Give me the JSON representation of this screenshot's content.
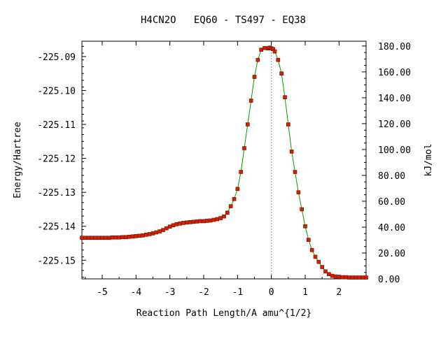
{
  "chart_data": {
    "type": "line",
    "title": "H4CN2O   EQ60 - TS497 - EQ38",
    "xlabel": "Reaction Path Length/A amu^{1/2}",
    "ylabel": "Energy/Hartree",
    "y2label": "kJ/mol",
    "xlim": [
      -5.6,
      2.8
    ],
    "ylim": [
      -225.1555,
      -225.0855
    ],
    "y2lim": [
      0.0,
      183.7
    ],
    "x_ticks": [
      "-5",
      "-4",
      "-3",
      "-2",
      "-1",
      "0",
      "1",
      "2"
    ],
    "y_ticks": [
      "-225.15",
      "-225.14",
      "-225.13",
      "-225.12",
      "-225.11",
      "-225.10",
      "-225.09"
    ],
    "y2_ticks": [
      "0.00",
      "20.00",
      "40.00",
      "60.00",
      "80.00",
      "100.00",
      "120.00",
      "140.00",
      "160.00",
      "180.00"
    ],
    "ts_marker_x": 0.0,
    "grid": false,
    "colors": {
      "line": "#00a000",
      "points": "#d42000",
      "point_edge": "#6a1000",
      "ts_line": "#a0a0a0"
    },
    "series": [
      {
        "x": [
          -5.6,
          -5.5,
          -5.4,
          -5.3,
          -5.2,
          -5.1,
          -5.0,
          -4.9,
          -4.8,
          -4.7,
          -4.6,
          -4.5,
          -4.4,
          -4.3,
          -4.2,
          -4.1,
          -4.0,
          -3.9,
          -3.8,
          -3.7,
          -3.6,
          -3.5,
          -3.4,
          -3.3,
          -3.2,
          -3.1,
          -3.0,
          -2.9,
          -2.8,
          -2.7,
          -2.6,
          -2.5,
          -2.4,
          -2.3,
          -2.2,
          -2.1,
          -2.0,
          -1.9,
          -1.8,
          -1.7,
          -1.6,
          -1.5,
          -1.4,
          -1.3,
          -1.2,
          -1.1,
          -1.0,
          -0.9,
          -0.8,
          -0.7,
          -0.6,
          -0.5,
          -0.4,
          -0.3,
          -0.2,
          -0.1,
          -0.05,
          0.0,
          0.05,
          0.1,
          0.2,
          0.3,
          0.4,
          0.5,
          0.6,
          0.7,
          0.8,
          0.9,
          1.0,
          1.1,
          1.2,
          1.3,
          1.4,
          1.5,
          1.6,
          1.7,
          1.8,
          1.9,
          2.0,
          2.1,
          2.2,
          2.3,
          2.4,
          2.5,
          2.6,
          2.7,
          2.8
        ],
        "y": [
          -225.1434,
          -225.1434,
          -225.1434,
          -225.1434,
          -225.1434,
          -225.1434,
          -225.1434,
          -225.1434,
          -225.1434,
          -225.1433,
          -225.1433,
          -225.1433,
          -225.1432,
          -225.1432,
          -225.1431,
          -225.143,
          -225.1429,
          -225.1428,
          -225.1427,
          -225.1425,
          -225.1423,
          -225.1421,
          -225.1418,
          -225.1415,
          -225.1411,
          -225.1406,
          -225.1401,
          -225.1397,
          -225.1394,
          -225.1392,
          -225.139,
          -225.1389,
          -225.1388,
          -225.1387,
          -225.1386,
          -225.1385,
          -225.1385,
          -225.1384,
          -225.1383,
          -225.1381,
          -225.1379,
          -225.1376,
          -225.1371,
          -225.136,
          -225.1341,
          -225.132,
          -225.129,
          -225.124,
          -225.117,
          -225.11,
          -225.103,
          -225.096,
          -225.091,
          -225.088,
          -225.0875,
          -225.0876,
          -225.0874,
          -225.0876,
          -225.0878,
          -225.0885,
          -225.091,
          -225.095,
          -225.102,
          -225.11,
          -225.118,
          -225.124,
          -225.13,
          -225.135,
          -225.14,
          -225.144,
          -225.147,
          -225.149,
          -225.1505,
          -225.152,
          -225.1533,
          -225.1541,
          -225.1546,
          -225.1548,
          -225.1549,
          -225.155,
          -225.155,
          -225.1551,
          -225.1551,
          -225.1551,
          -225.1551,
          -225.1551,
          -225.1551
        ]
      }
    ]
  }
}
